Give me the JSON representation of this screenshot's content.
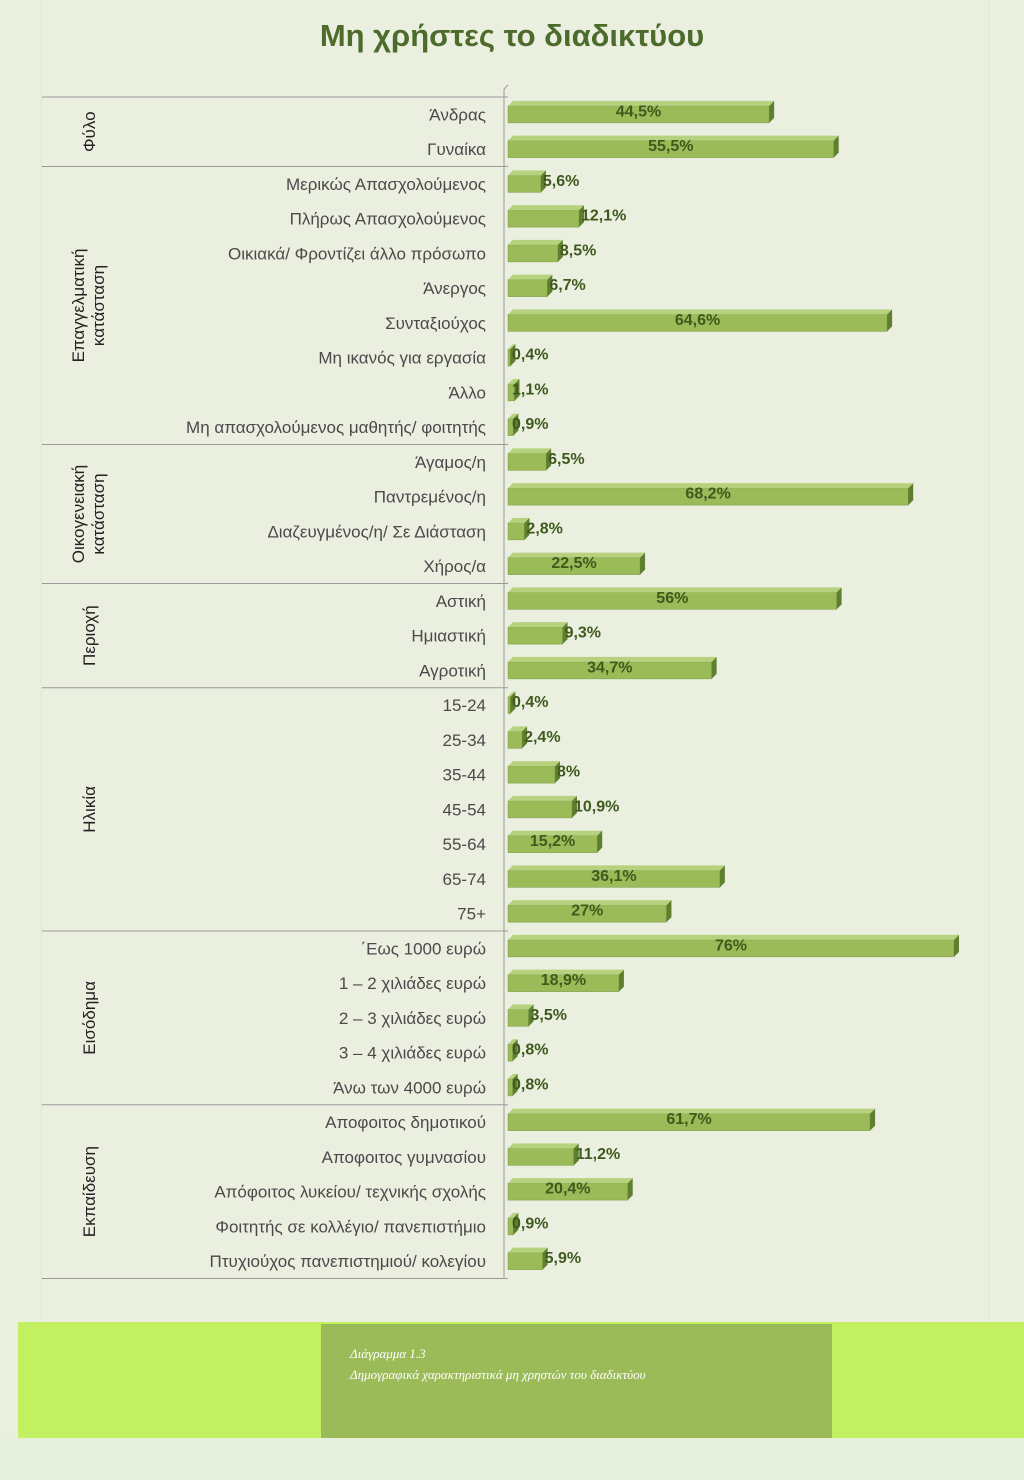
{
  "header": {
    "title": "Μη χρήστες το διαδικτύου"
  },
  "caption": {
    "number": "Διάγραμμα 1.3",
    "text": "Δημογραφικά χαρακτηριστικά μη χρηστών του διαδικτύου"
  },
  "colors": {
    "bar_face": "#9bbb59",
    "bar_side": "#5e7f2e",
    "bar_top": "#b7d27e",
    "label": "#4a4a4a",
    "value": "#3f5a1c"
  },
  "chart_data": {
    "type": "bar",
    "orientation": "horizontal",
    "title": "Μη χρήστες το διαδικτύου",
    "value_format": "percent",
    "xlim": [
      0,
      76
    ],
    "groups": [
      {
        "name": "Φύλο",
        "categories": [
          "Άνδρας",
          "Γυναίκα"
        ],
        "values": [
          44.5,
          55.5
        ],
        "labels": [
          "44,5%",
          "55,5%"
        ]
      },
      {
        "name": "Επαγγελματική κατάσταση",
        "categories": [
          "Μερικώς Απασχολούμενος",
          "Πλήρως Απασχολούμενος",
          "Οικιακά/ Φροντίζει άλλο πρόσωπο",
          "Άνεργος",
          "Συνταξιούχος",
          "Μη ικανός για εργασία",
          "Άλλο",
          "Μη απασχολούμενος μαθητής/ φοιτητής"
        ],
        "values": [
          5.6,
          12.1,
          8.5,
          6.7,
          64.6,
          0.4,
          1.1,
          0.9
        ],
        "labels": [
          "5,6%",
          "12,1%",
          "8,5%",
          "6,7%",
          "64,6%",
          "0,4%",
          "1,1%",
          "0,9%"
        ]
      },
      {
        "name": "Οικογενειακή κατάσταση",
        "categories": [
          "Άγαμος/η",
          "Παντρεμένος/η",
          "Διαζευγμένος/η/  Σε Διάσταση",
          "Χήρος/α"
        ],
        "values": [
          6.5,
          68.2,
          2.8,
          22.5
        ],
        "labels": [
          "6,5%",
          "68,2%",
          "2,8%",
          "22,5%"
        ]
      },
      {
        "name": "Περιοχή",
        "categories": [
          "Αστική",
          "Ημιαστική",
          "Αγροτική"
        ],
        "values": [
          56,
          9.3,
          34.7
        ],
        "labels": [
          "56%",
          "9,3%",
          "34,7%"
        ]
      },
      {
        "name": "Ηλικία",
        "categories": [
          "15-24",
          "25-34",
          "35-44",
          "45-54",
          "55-64",
          "65-74",
          "75+"
        ],
        "values": [
          0.4,
          2.4,
          8,
          10.9,
          15.2,
          36.1,
          27
        ],
        "labels": [
          "0,4%",
          "2,4%",
          "8%",
          "10,9%",
          "15,2%",
          "36,1%",
          "27%"
        ]
      },
      {
        "name": "Εισόδημα",
        "categories": [
          "΄Εως 1000 ευρώ",
          "1 – 2 χιλιάδες ευρώ",
          "2 – 3 χιλιάδες ευρώ",
          "3 – 4 χιλιάδες ευρώ",
          "Άνω των 4000 ευρώ"
        ],
        "values": [
          76,
          18.9,
          3.5,
          0.8,
          0.8
        ],
        "labels": [
          "76%",
          "18,9%",
          "3,5%",
          "0,8%",
          "0,8%"
        ]
      },
      {
        "name": "Εκπαίδευση",
        "categories": [
          "Αποφοιτος δημοτικού",
          "Αποφοιτος γυμνασίου",
          "Απόφοιτος λυκείου/ τεχνικής σχολής",
          "Φοιτητής σε κολλέγιο/ πανεπιστήμιο",
          "Πτυχιούχος πανεπιστημιού/ κολεγίου"
        ],
        "values": [
          61.7,
          11.2,
          20.4,
          0.9,
          5.9
        ],
        "labels": [
          "61,7%",
          "11,2%",
          "20,4%",
          "0,9%",
          "5,9%"
        ]
      }
    ]
  }
}
